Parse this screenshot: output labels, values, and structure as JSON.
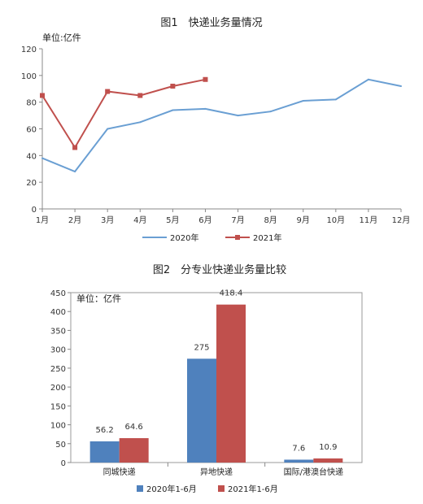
{
  "charts": [
    {
      "type": "line",
      "title": "图1　快递业务量情况",
      "unit_label": "单位:亿件",
      "categories": [
        "1月",
        "2月",
        "3月",
        "4月",
        "5月",
        "6月",
        "7月",
        "8月",
        "9月",
        "10月",
        "11月",
        "12月"
      ],
      "y_ticks": [
        "0",
        "20",
        "40",
        "60",
        "80",
        "100",
        "120"
      ],
      "ylim": [
        0,
        120
      ],
      "legend_position": "bottom",
      "series": [
        {
          "name": "2020年",
          "color": "#6a9fd3",
          "marker": "none",
          "values": [
            38,
            28,
            60,
            65,
            74,
            75,
            70,
            73,
            81,
            82,
            97,
            92
          ]
        },
        {
          "name": "2021年",
          "color": "#c0504d",
          "marker": "square",
          "values": [
            85,
            46,
            88,
            85,
            92,
            97
          ]
        }
      ]
    },
    {
      "type": "bar",
      "title": "图2　分专业快递业务量比较",
      "unit_label": "单位：亿件",
      "categories": [
        "同城快递",
        "异地快递",
        "国际/港澳台快递"
      ],
      "y_ticks": [
        "0",
        "50",
        "100",
        "150",
        "200",
        "250",
        "300",
        "350",
        "400",
        "450"
      ],
      "ylim": [
        0,
        450
      ],
      "legend_position": "bottom",
      "series": [
        {
          "name": "2020年1-6月",
          "color": "#4f81bd",
          "values": [
            56.2,
            275,
            7.6
          ],
          "labels": [
            "56.2",
            "275",
            "7.6"
          ]
        },
        {
          "name": "2021年1-6月",
          "color": "#c0504d",
          "values": [
            64.6,
            418.4,
            10.9
          ],
          "labels": [
            "64.6",
            "418.4",
            "10.9"
          ]
        }
      ]
    }
  ]
}
